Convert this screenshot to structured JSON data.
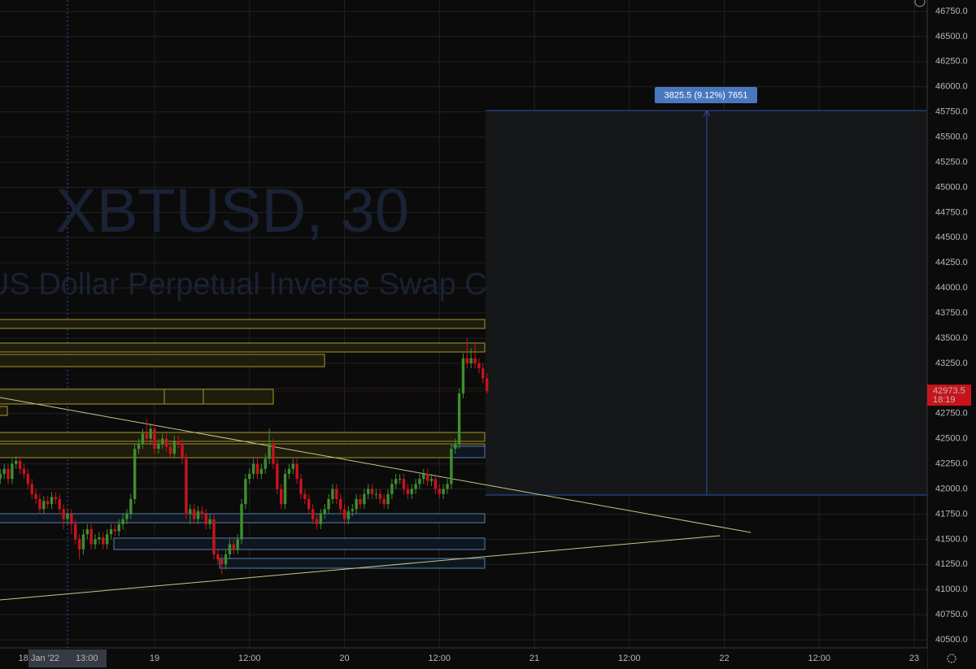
{
  "chart_data": {
    "type": "candlestick",
    "watermark_title": "XBTUSD, 30",
    "watermark_subtitle": "US Dollar Perpetual Inverse Swap Contract",
    "measure_label": "3825.5 (9.12%) 7651",
    "last_price": 42973.5,
    "countdown": "18:19",
    "crosshair": {
      "x": 13,
      "date": "18 Jan '22",
      "time": "13:00"
    },
    "up_color": "#3f8f2e",
    "down_color": "#c8141c",
    "grid": true,
    "xlim": [
      4.47,
      121.64
    ],
    "ylim": [
      40420,
      46863
    ],
    "xticks": [
      {
        "value": 24,
        "label": "19"
      },
      {
        "value": 36,
        "label": "12:00"
      },
      {
        "value": 48,
        "label": "20"
      },
      {
        "value": 60,
        "label": "12:00"
      },
      {
        "value": 72,
        "label": "21"
      },
      {
        "value": 84,
        "label": "12:00"
      },
      {
        "value": 96,
        "label": "22"
      },
      {
        "value": 108,
        "label": "12:00"
      },
      {
        "value": 120,
        "label": "23"
      }
    ],
    "yticks": [
      {
        "value": 40500,
        "label": "40500.0"
      },
      {
        "value": 40750,
        "label": "40750.0"
      },
      {
        "value": 41000,
        "label": "41000.0"
      },
      {
        "value": 41250,
        "label": "41250.0"
      },
      {
        "value": 41500,
        "label": "41500.0"
      },
      {
        "value": 41750,
        "label": "41750.0"
      },
      {
        "value": 42000,
        "label": "42000.0"
      },
      {
        "value": 42250,
        "label": "42250.0"
      },
      {
        "value": 42500,
        "label": "42500.0"
      },
      {
        "value": 42750,
        "label": "42750.0"
      },
      {
        "value": 43000,
        "label": "43000.0"
      },
      {
        "value": 43250,
        "label": "43250.0"
      },
      {
        "value": 43500,
        "label": "43500.0"
      },
      {
        "value": 43750,
        "label": "43750.0"
      },
      {
        "value": 44000,
        "label": "44000.0"
      },
      {
        "value": 44250,
        "label": "44250.0"
      },
      {
        "value": 44500,
        "label": "44500.0"
      },
      {
        "value": 44750,
        "label": "44750.0"
      },
      {
        "value": 45000,
        "label": "45000.0"
      },
      {
        "value": 45250,
        "label": "45250.0"
      },
      {
        "value": 45500,
        "label": "45500.0"
      },
      {
        "value": 45750,
        "label": "45750.0"
      },
      {
        "value": 46000,
        "label": "46000.0"
      },
      {
        "value": 46250,
        "label": "46250.0"
      },
      {
        "value": 46500,
        "label": "46500.0"
      },
      {
        "value": 46750,
        "label": "46750.0"
      }
    ],
    "x": [
      4.5,
      5,
      5.5,
      6,
      6.5,
      7,
      7.5,
      8,
      8.5,
      9,
      9.5,
      10,
      10.5,
      11,
      11.5,
      12,
      12.5,
      13,
      13.5,
      14,
      14.5,
      15,
      15.5,
      16,
      16.5,
      17,
      17.5,
      18,
      18.5,
      19,
      19.5,
      20,
      20.5,
      21,
      21.5,
      22,
      22.5,
      23,
      23.5,
      24,
      24.5,
      25,
      25.5,
      26,
      26.5,
      27,
      27.5,
      28,
      28.5,
      29,
      29.5,
      30,
      30.5,
      31,
      31.5,
      32,
      32.5,
      33,
      33.5,
      34,
      34.5,
      35,
      35.5,
      36,
      36.5,
      37,
      37.5,
      38,
      38.5,
      39,
      39.5,
      40,
      40.5,
      41,
      41.5,
      42,
      42.5,
      43,
      43.5,
      44,
      44.5,
      45,
      45.5,
      46,
      46.5,
      47,
      47.5,
      48,
      48.5,
      49,
      49.5,
      50,
      50.5,
      51,
      51.5,
      52,
      52.5,
      53,
      53.5,
      54,
      54.5,
      55,
      55.5,
      56,
      56.5,
      57,
      57.5,
      58,
      58.5,
      59,
      59.5,
      60,
      60.5,
      61,
      61.5,
      62,
      62.5,
      63,
      63.5,
      64,
      64.5,
      65,
      65.5,
      66
    ],
    "ohlc": [
      [
        42100,
        42200,
        42050,
        42150
      ],
      [
        42150,
        42250,
        42100,
        42200
      ],
      [
        42200,
        42250,
        42050,
        42100
      ],
      [
        42100,
        42300,
        42050,
        42250
      ],
      [
        42250,
        42330,
        42200,
        42280
      ],
      [
        42280,
        42330,
        42150,
        42200
      ],
      [
        42200,
        42250,
        42100,
        42150
      ],
      [
        42150,
        42200,
        42000,
        42050
      ],
      [
        42050,
        42100,
        41900,
        41950
      ],
      [
        41950,
        42000,
        41850,
        41900
      ],
      [
        41900,
        41950,
        41750,
        41800
      ],
      [
        41800,
        41930,
        41750,
        41880
      ],
      [
        41880,
        41930,
        41800,
        41850
      ],
      [
        41850,
        41970,
        41800,
        41920
      ],
      [
        41920,
        41970,
        41850,
        41900
      ],
      [
        41900,
        41950,
        41750,
        41800
      ],
      [
        41800,
        41850,
        41600,
        41700
      ],
      [
        41700,
        41800,
        41650,
        41750
      ],
      [
        41750,
        41800,
        41550,
        41650
      ],
      [
        41650,
        41700,
        41450,
        41500
      ],
      [
        41500,
        41550,
        41300,
        41400
      ],
      [
        41400,
        41600,
        41350,
        41550
      ],
      [
        41550,
        41650,
        41500,
        41600
      ],
      [
        41600,
        41650,
        41400,
        41450
      ],
      [
        41450,
        41550,
        41400,
        41500
      ],
      [
        41500,
        41570,
        41450,
        41520
      ],
      [
        41520,
        41570,
        41400,
        41450
      ],
      [
        41450,
        41600,
        41400,
        41550
      ],
      [
        41550,
        41650,
        41500,
        41600
      ],
      [
        41600,
        41650,
        41530,
        41580
      ],
      [
        41580,
        41700,
        41530,
        41650
      ],
      [
        41650,
        41750,
        41600,
        41700
      ],
      [
        41700,
        41800,
        41650,
        41750
      ],
      [
        41750,
        41950,
        41700,
        41900
      ],
      [
        41900,
        42450,
        41850,
        42400
      ],
      [
        42400,
        42500,
        42350,
        42450
      ],
      [
        42450,
        42600,
        42400,
        42550
      ],
      [
        42550,
        42700,
        42450,
        42500
      ],
      [
        42500,
        42650,
        42450,
        42600
      ],
      [
        42600,
        42650,
        42350,
        42400
      ],
      [
        42400,
        42500,
        42350,
        42450
      ],
      [
        42450,
        42550,
        42400,
        42500
      ],
      [
        42500,
        42550,
        42370,
        42420
      ],
      [
        42420,
        42470,
        42300,
        42350
      ],
      [
        42350,
        42530,
        42300,
        42480
      ],
      [
        42480,
        42530,
        42400,
        42450
      ],
      [
        42450,
        42500,
        42250,
        42300
      ],
      [
        42300,
        42350,
        41700,
        41750
      ],
      [
        41750,
        41850,
        41650,
        41800
      ],
      [
        41800,
        41850,
        41650,
        41700
      ],
      [
        41700,
        41830,
        41650,
        41780
      ],
      [
        41780,
        41830,
        41700,
        41750
      ],
      [
        41750,
        41800,
        41600,
        41650
      ],
      [
        41650,
        41750,
        41600,
        41700
      ],
      [
        41700,
        41750,
        41300,
        41350
      ],
      [
        41350,
        41400,
        41250,
        41300
      ],
      [
        41300,
        41350,
        41150,
        41250
      ],
      [
        41250,
        41400,
        41200,
        41350
      ],
      [
        41350,
        41500,
        41300,
        41450
      ],
      [
        41450,
        41500,
        41350,
        41400
      ],
      [
        41400,
        41550,
        41350,
        41500
      ],
      [
        41500,
        41900,
        41450,
        41850
      ],
      [
        41850,
        42150,
        41800,
        42100
      ],
      [
        42100,
        42200,
        42050,
        42150
      ],
      [
        42150,
        42300,
        42100,
        42250
      ],
      [
        42250,
        42300,
        42100,
        42150
      ],
      [
        42150,
        42250,
        42100,
        42200
      ],
      [
        42200,
        42350,
        42150,
        42300
      ],
      [
        42300,
        42600,
        42250,
        42450
      ],
      [
        42450,
        42500,
        42200,
        42250
      ],
      [
        42250,
        42300,
        41950,
        42000
      ],
      [
        42000,
        42050,
        41800,
        41850
      ],
      [
        41850,
        42200,
        41800,
        42150
      ],
      [
        42150,
        42250,
        42100,
        42200
      ],
      [
        42200,
        42300,
        42150,
        42250
      ],
      [
        42250,
        42300,
        42050,
        42100
      ],
      [
        42100,
        42150,
        41900,
        41950
      ],
      [
        41950,
        42000,
        41850,
        41900
      ],
      [
        41900,
        41950,
        41750,
        41800
      ],
      [
        41800,
        41850,
        41650,
        41700
      ],
      [
        41700,
        41750,
        41600,
        41650
      ],
      [
        41650,
        41800,
        41600,
        41750
      ],
      [
        41750,
        41850,
        41700,
        41800
      ],
      [
        41800,
        41950,
        41750,
        41900
      ],
      [
        41900,
        42050,
        41850,
        42000
      ],
      [
        42000,
        42050,
        41850,
        41900
      ],
      [
        41900,
        41950,
        41750,
        41800
      ],
      [
        41800,
        41850,
        41650,
        41700
      ],
      [
        41700,
        41830,
        41650,
        41780
      ],
      [
        41780,
        41850,
        41730,
        41800
      ],
      [
        41800,
        41950,
        41750,
        41900
      ],
      [
        41900,
        41950,
        41800,
        41850
      ],
      [
        41850,
        42000,
        41800,
        41950
      ],
      [
        41950,
        42050,
        41900,
        42000
      ],
      [
        42000,
        42050,
        41900,
        41950
      ],
      [
        41950,
        42000,
        41900,
        41950
      ],
      [
        41950,
        42000,
        41850,
        41900
      ],
      [
        41900,
        41950,
        41800,
        41850
      ],
      [
        41850,
        42000,
        41800,
        41950
      ],
      [
        41950,
        42100,
        41900,
        42050
      ],
      [
        42050,
        42150,
        42000,
        42100
      ],
      [
        42100,
        42150,
        42050,
        42100
      ],
      [
        42100,
        42150,
        41950,
        42000
      ],
      [
        42000,
        42050,
        41900,
        41950
      ],
      [
        41950,
        42050,
        41900,
        42000
      ],
      [
        42000,
        42100,
        41950,
        42050
      ],
      [
        42050,
        42150,
        42000,
        42100
      ],
      [
        42100,
        42200,
        42050,
        42150
      ],
      [
        42150,
        42200,
        42030,
        42080
      ],
      [
        42080,
        42150,
        42030,
        42100
      ],
      [
        42100,
        42150,
        41950,
        42000
      ],
      [
        42000,
        42050,
        41900,
        41950
      ],
      [
        41950,
        42050,
        41900,
        42000
      ],
      [
        42000,
        42100,
        41950,
        42050
      ],
      [
        42050,
        42450,
        42000,
        42400
      ],
      [
        42400,
        42500,
        42350,
        42450
      ],
      [
        42450,
        43000,
        42400,
        42950
      ],
      [
        42950,
        43350,
        42900,
        43300
      ],
      [
        43300,
        43500,
        43200,
        43250
      ],
      [
        43250,
        43400,
        43200,
        43300
      ],
      [
        43300,
        43450,
        43200,
        43250
      ],
      [
        43250,
        43300,
        43150,
        43200
      ],
      [
        43200,
        43250,
        43050,
        43100
      ],
      [
        43100,
        43150,
        42950,
        42973.5
      ]
    ]
  }
}
